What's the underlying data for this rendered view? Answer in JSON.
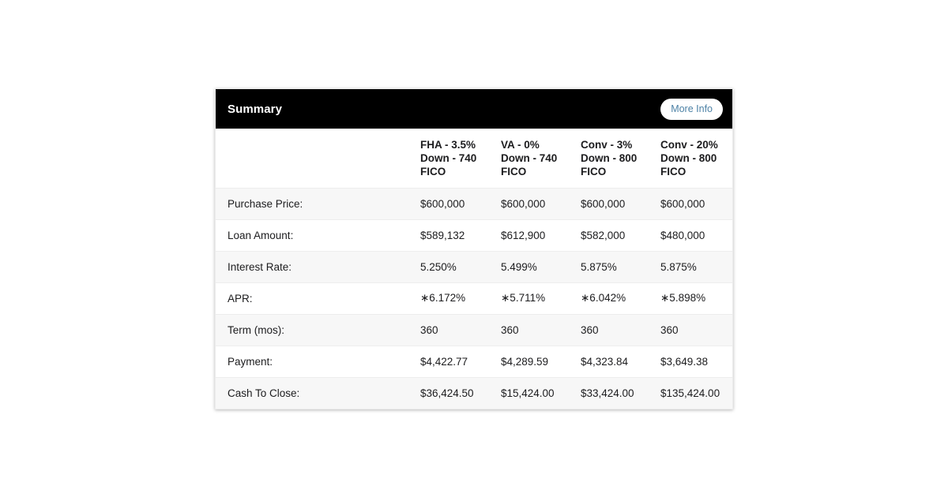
{
  "card": {
    "header": {
      "title": "Summary",
      "more_info_label": "More Info"
    },
    "table": {
      "columns": [
        "FHA - 3.5%\nDown - 740\nFICO",
        "VA - 0%\nDown - 740\nFICO",
        "Conv - 3%\nDown - 800\nFICO",
        "Conv - 20%\nDown - 800\nFICO"
      ],
      "rows": [
        {
          "label": "Purchase Price:",
          "values": [
            "$600,000",
            "$600,000",
            "$600,000",
            "$600,000"
          ]
        },
        {
          "label": "Loan Amount:",
          "values": [
            "$589,132",
            "$612,900",
            "$582,000",
            "$480,000"
          ]
        },
        {
          "label": "Interest Rate:",
          "values": [
            "5.250%",
            "5.499%",
            "5.875%",
            "5.875%"
          ]
        },
        {
          "label": "APR:",
          "values": [
            "∗6.172%",
            "∗5.711%",
            "∗6.042%",
            "∗5.898%"
          ]
        },
        {
          "label": "Term (mos):",
          "values": [
            "360",
            "360",
            "360",
            "360"
          ]
        },
        {
          "label": "Payment:",
          "values": [
            "$4,422.77",
            "$4,289.59",
            "$4,323.84",
            "$3,649.38"
          ]
        },
        {
          "label": "Cash To Close:",
          "values": [
            "$36,424.50",
            "$15,424.00",
            "$33,424.00",
            "$135,424.00"
          ]
        }
      ]
    },
    "colors": {
      "header_bg": "#000000",
      "header_text": "#ffffff",
      "button_bg": "#ffffff",
      "button_text": "#4d82a6",
      "row_alt_bg": "#f7f7f7",
      "body_text": "#1c1c1e"
    }
  }
}
